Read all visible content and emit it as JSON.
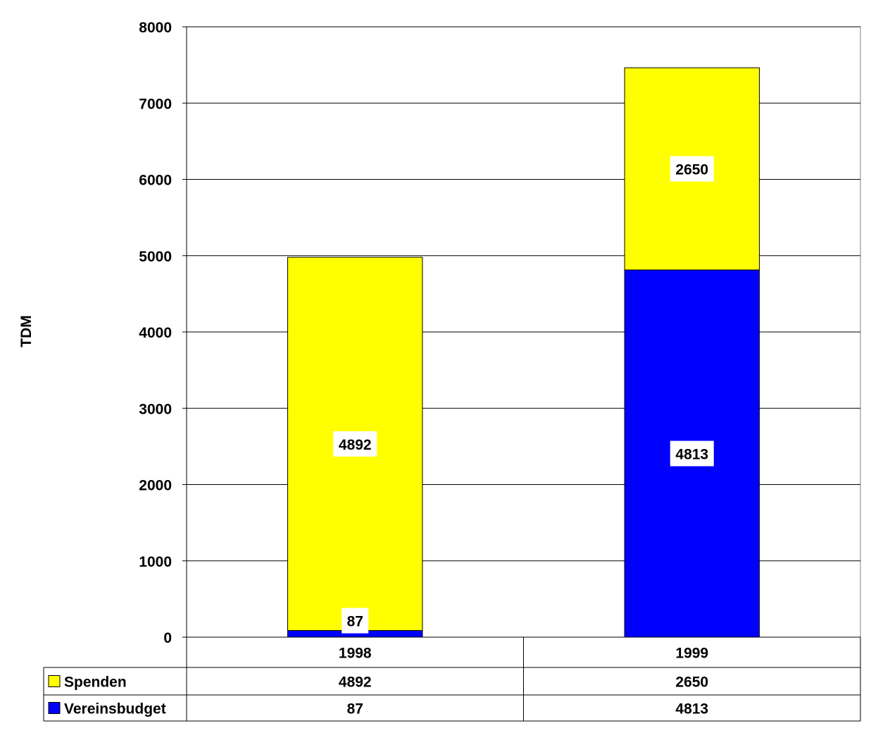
{
  "chart_data": {
    "type": "bar",
    "stacked": true,
    "ylabel": "TDM",
    "ylim": [
      0,
      8000
    ],
    "yticks": [
      0,
      1000,
      2000,
      3000,
      4000,
      5000,
      6000,
      7000,
      8000
    ],
    "grid": true,
    "categories": [
      "1998",
      "1999"
    ],
    "series": [
      {
        "name": "Vereinsbudget",
        "color": "#0000ff",
        "values": [
          87,
          4813
        ]
      },
      {
        "name": "Spenden",
        "color": "#ffff00",
        "values": [
          4892,
          2650
        ]
      }
    ],
    "data_table": {
      "rows": [
        "Spenden",
        "Vereinsbudget"
      ]
    }
  }
}
